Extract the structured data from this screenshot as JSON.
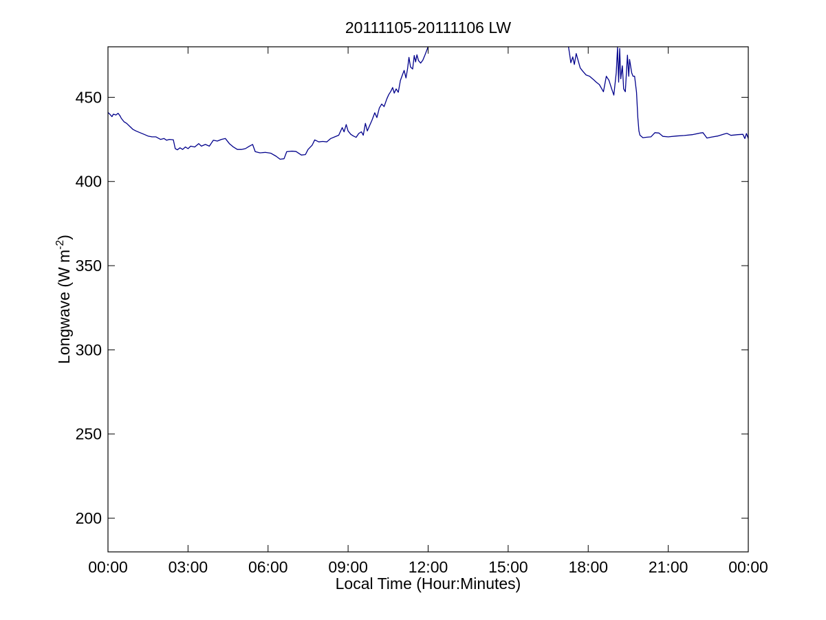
{
  "figure": {
    "title": "20111105-20111106 LW",
    "xlabel": "Local Time (Hour:Minutes)",
    "ylabel_base": "Longwave (W m",
    "ylabel_sup": "-2",
    "ylabel_close": ")"
  },
  "chart_data": {
    "type": "line",
    "title": "20111105-20111106 LW",
    "xlabel": "Local Time (Hour:Minutes)",
    "ylabel": "Longwave (W m^-2)",
    "x_unit": "local time, hours after 00:00",
    "y_unit": "W m^-2",
    "xlim": [
      0,
      24
    ],
    "ylim": [
      180,
      480
    ],
    "x_ticks": [
      {
        "h": 0,
        "label": "00:00"
      },
      {
        "h": 3,
        "label": "03:00"
      },
      {
        "h": 6,
        "label": "06:00"
      },
      {
        "h": 9,
        "label": "09:00"
      },
      {
        "h": 12,
        "label": "12:00"
      },
      {
        "h": 15,
        "label": "15:00"
      },
      {
        "h": 18,
        "label": "18:00"
      },
      {
        "h": 21,
        "label": "21:00"
      },
      {
        "h": 24,
        "label": "00:00"
      }
    ],
    "y_ticks": [
      200,
      250,
      300,
      350,
      400,
      450
    ],
    "grid": false,
    "legend": null,
    "box": true,
    "tick_direction": "in",
    "line_color": "#00008B",
    "axis_color": "#000000",
    "background": "#ffffff",
    "clipped_above_ymax_interval_hours": [
      12.03,
      17.25
    ],
    "series": [
      {
        "name": "Longwave irradiance",
        "segments": [
          [
            [
              0,
              441
            ],
            [
              0.08,
              439.8
            ],
            [
              0.15,
              438.5
            ],
            [
              0.2,
              440
            ],
            [
              0.3,
              439.5
            ],
            [
              0.38,
              440.5
            ],
            [
              0.45,
              439
            ],
            [
              0.5,
              437.5
            ],
            [
              0.6,
              435.5
            ],
            [
              0.7,
              434.5
            ],
            [
              0.8,
              433
            ],
            [
              0.93,
              431
            ],
            [
              1.05,
              430
            ],
            [
              1.2,
              429
            ],
            [
              1.35,
              428
            ],
            [
              1.5,
              427
            ],
            [
              1.65,
              426.5
            ],
            [
              1.8,
              426.5
            ],
            [
              1.97,
              425
            ],
            [
              2.1,
              425.5
            ],
            [
              2.2,
              424.5
            ],
            [
              2.3,
              425
            ],
            [
              2.45,
              424.8
            ],
            [
              2.52,
              419.5
            ],
            [
              2.6,
              418.8
            ],
            [
              2.7,
              420
            ],
            [
              2.8,
              419
            ],
            [
              2.9,
              420.5
            ],
            [
              3.0,
              419.5
            ],
            [
              3.1,
              421
            ],
            [
              3.25,
              420.5
            ],
            [
              3.4,
              422.5
            ],
            [
              3.5,
              421
            ],
            [
              3.65,
              422
            ],
            [
              3.8,
              421
            ],
            [
              3.95,
              424.5
            ],
            [
              4.1,
              424
            ],
            [
              4.25,
              425
            ],
            [
              4.4,
              425.5
            ],
            [
              4.55,
              422.5
            ],
            [
              4.7,
              420.5
            ],
            [
              4.85,
              419
            ],
            [
              5.0,
              419
            ],
            [
              5.15,
              419.5
            ],
            [
              5.3,
              421
            ],
            [
              5.42,
              422
            ],
            [
              5.52,
              417.7
            ],
            [
              5.7,
              417
            ],
            [
              5.9,
              417.3
            ],
            [
              6.1,
              416.8
            ],
            [
              6.3,
              415
            ],
            [
              6.45,
              413.2
            ],
            [
              6.6,
              413.5
            ],
            [
              6.7,
              417.7
            ],
            [
              6.9,
              418
            ],
            [
              7.05,
              417.8
            ],
            [
              7.25,
              415.7
            ],
            [
              7.4,
              416
            ],
            [
              7.5,
              419
            ],
            [
              7.65,
              421.5
            ],
            [
              7.75,
              424.7
            ],
            [
              7.9,
              423.5
            ],
            [
              8.05,
              423.8
            ],
            [
              8.2,
              423.5
            ],
            [
              8.35,
              425.5
            ],
            [
              8.5,
              426.5
            ],
            [
              8.65,
              427.5
            ],
            [
              8.78,
              432
            ],
            [
              8.85,
              429.5
            ],
            [
              8.93,
              433.8
            ],
            [
              9.0,
              430
            ],
            [
              9.1,
              428
            ],
            [
              9.2,
              427
            ],
            [
              9.3,
              426.2
            ],
            [
              9.4,
              428.5
            ],
            [
              9.5,
              429.5
            ],
            [
              9.57,
              427.5
            ],
            [
              9.65,
              434.5
            ],
            [
              9.72,
              430
            ],
            [
              9.8,
              433
            ],
            [
              9.9,
              436.5
            ],
            [
              10.0,
              440.8
            ],
            [
              10.08,
              438
            ],
            [
              10.17,
              443.6
            ],
            [
              10.26,
              446
            ],
            [
              10.35,
              444.5
            ],
            [
              10.45,
              449
            ],
            [
              10.52,
              451.5
            ],
            [
              10.6,
              453.5
            ],
            [
              10.67,
              455.8
            ],
            [
              10.73,
              452.5
            ],
            [
              10.8,
              455
            ],
            [
              10.88,
              453
            ],
            [
              10.96,
              460
            ],
            [
              11.04,
              463.5
            ],
            [
              11.1,
              466
            ],
            [
              11.17,
              461.5
            ],
            [
              11.23,
              467
            ],
            [
              11.28,
              473.7
            ],
            [
              11.34,
              468
            ],
            [
              11.42,
              466.8
            ],
            [
              11.48,
              474.8
            ],
            [
              11.53,
              471
            ],
            [
              11.58,
              475.2
            ],
            [
              11.64,
              471.8
            ],
            [
              11.72,
              470.3
            ],
            [
              11.8,
              472
            ],
            [
              11.88,
              475
            ],
            [
              11.95,
              478
            ],
            [
              12.02,
              481
            ]
          ],
          [
            [
              17.25,
              481
            ],
            [
              17.3,
              476
            ],
            [
              17.35,
              470.5
            ],
            [
              17.42,
              474
            ],
            [
              17.48,
              469.5
            ],
            [
              17.55,
              476
            ],
            [
              17.62,
              472
            ],
            [
              17.7,
              467.5
            ],
            [
              17.78,
              465.8
            ],
            [
              17.92,
              463.3
            ],
            [
              18.05,
              462.5
            ],
            [
              18.2,
              460.5
            ],
            [
              18.3,
              459
            ],
            [
              18.42,
              457.5
            ],
            [
              18.57,
              453.3
            ],
            [
              18.68,
              462.5
            ],
            [
              18.78,
              460
            ],
            [
              18.88,
              455
            ],
            [
              18.96,
              451.3
            ],
            [
              19.02,
              460
            ],
            [
              19.05,
              464.5
            ],
            [
              19.1,
              479.6
            ],
            [
              19.14,
              459
            ],
            [
              19.18,
              479
            ],
            [
              19.22,
              461
            ],
            [
              19.28,
              468.7
            ],
            [
              19.33,
              455
            ],
            [
              19.39,
              453.3
            ],
            [
              19.47,
              475
            ],
            [
              19.52,
              462.5
            ],
            [
              19.55,
              472.5
            ],
            [
              19.63,
              464.5
            ],
            [
              19.68,
              462.5
            ],
            [
              19.74,
              462.5
            ],
            [
              19.81,
              453
            ],
            [
              19.86,
              438
            ],
            [
              19.9,
              430
            ],
            [
              19.94,
              427.5
            ],
            [
              20.05,
              426
            ],
            [
              20.2,
              426.3
            ],
            [
              20.35,
              426.5
            ],
            [
              20.5,
              429
            ],
            [
              20.65,
              428.8
            ],
            [
              20.8,
              426.8
            ],
            [
              21.0,
              426.5
            ],
            [
              21.3,
              427
            ],
            [
              21.6,
              427.3
            ],
            [
              21.9,
              427.8
            ],
            [
              22.2,
              428.8
            ],
            [
              22.3,
              429
            ],
            [
              22.45,
              425.8
            ],
            [
              22.6,
              426.3
            ],
            [
              22.85,
              427
            ],
            [
              23.1,
              428.2
            ],
            [
              23.2,
              428.6
            ],
            [
              23.35,
              427.4
            ],
            [
              23.6,
              427.8
            ],
            [
              23.8,
              428
            ],
            [
              23.87,
              425.5
            ],
            [
              23.93,
              428.5
            ],
            [
              24.0,
              425.5
            ]
          ]
        ]
      }
    ]
  }
}
